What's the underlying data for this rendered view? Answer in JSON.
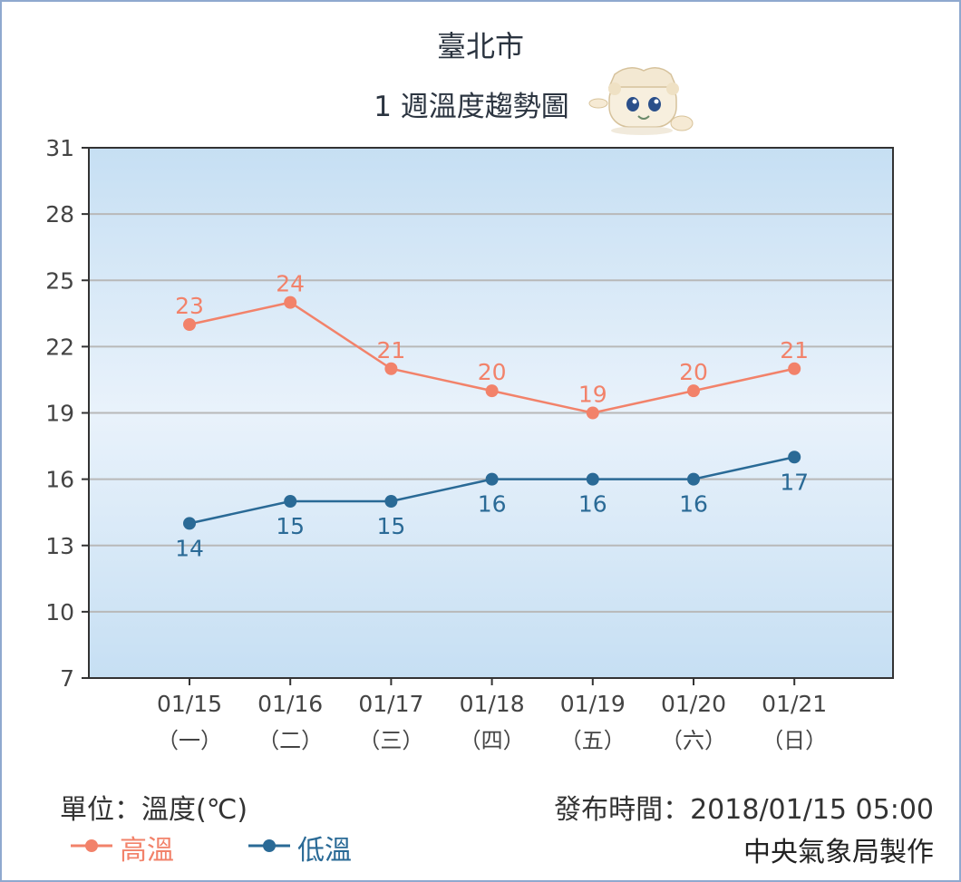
{
  "header": {
    "city": "臺北市",
    "subtitle": "1 週溫度趨勢圖",
    "mascot_icon": "weather-mascot-icon"
  },
  "footer": {
    "unit": "單位：溫度(℃)",
    "publish_time": "發布時間：2018/01/15 05:00",
    "maker": "中央氣象局製作"
  },
  "colors": {
    "high": "#f2826a",
    "low": "#2a6a96",
    "plot_center": "#e9f2fb",
    "plot_edge": "#c6dff3",
    "grid": "#b8b8b8",
    "axis": "#333333",
    "text": "#444444"
  },
  "chart_data": {
    "type": "line",
    "title": "臺北市",
    "subtitle": "1 週溫度趨勢圖",
    "categories": [
      "01/15",
      "01/16",
      "01/17",
      "01/18",
      "01/19",
      "01/20",
      "01/21"
    ],
    "weekdays": [
      "（一）",
      "（二）",
      "（三）",
      "（四）",
      "（五）",
      "（六）",
      "（日）"
    ],
    "ylim": [
      7,
      31
    ],
    "yticks": [
      7,
      10,
      13,
      16,
      19,
      22,
      25,
      28,
      31
    ],
    "grid": true,
    "legend_position": "bottom-left",
    "series": [
      {
        "name": "高溫",
        "color": "#f2826a",
        "values": [
          23,
          24,
          21,
          20,
          19,
          20,
          21
        ],
        "label_position": "above"
      },
      {
        "name": "低溫",
        "color": "#2a6a96",
        "values": [
          14,
          15,
          15,
          16,
          16,
          16,
          17
        ],
        "label_position": "below"
      }
    ]
  }
}
